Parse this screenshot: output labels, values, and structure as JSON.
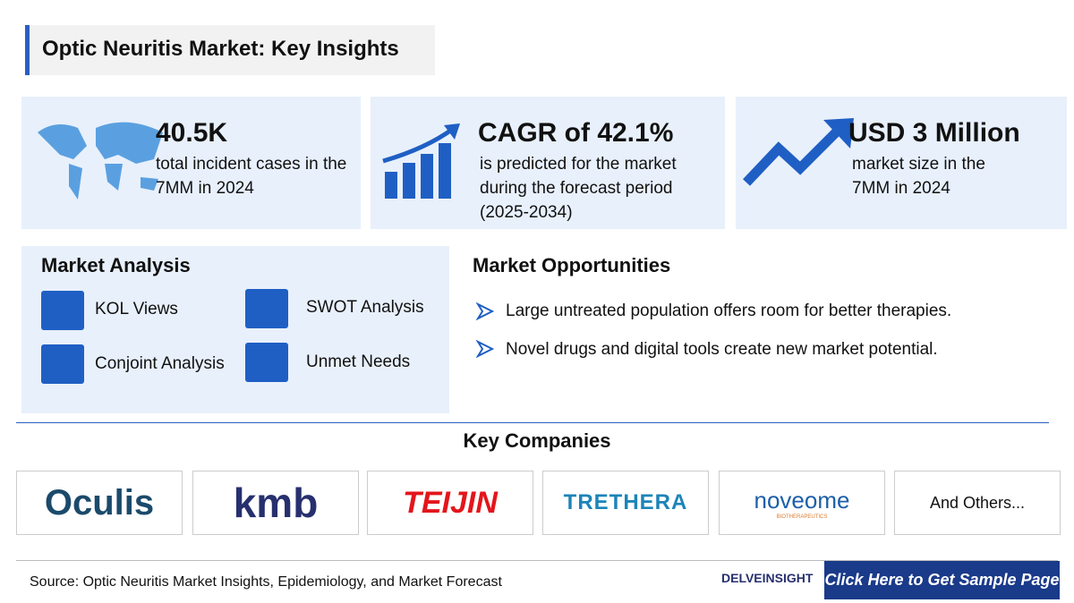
{
  "header": {
    "title": "Optic Neuritis Market: Key Insights"
  },
  "stats": [
    {
      "value": "40.5K",
      "text": "total incident cases in the 7MM in 2024"
    },
    {
      "value": "CAGR of 42.1%",
      "text": "is predicted for the market during the forecast period (2025-2034)"
    },
    {
      "value": "USD 3 Million",
      "text": "market size in the 7MM in 2024"
    }
  ],
  "market_analysis": {
    "title": "Market Analysis",
    "items": [
      "KOL Views",
      "SWOT Analysis",
      "Conjoint Analysis",
      "Unmet Needs"
    ]
  },
  "market_opportunities": {
    "title": "Market Opportunities",
    "items": [
      "Large untreated population offers room for better therapies.",
      "Novel drugs and digital tools create new market potential."
    ]
  },
  "key_companies": {
    "title": "Key Companies",
    "companies": [
      "Oculis",
      "kmb",
      "TEIJIN",
      "TRETHERA",
      "noveome",
      "And Others..."
    ],
    "companies_sub": {
      "4": "BIOTHERAPEUTICS"
    }
  },
  "footer": {
    "source": "Source: Optic Neuritis Market Insights, Epidemiology, and Market Forecast",
    "brand": "DELVEINSIGHT",
    "cta": "Click Here to Get Sample Page"
  }
}
